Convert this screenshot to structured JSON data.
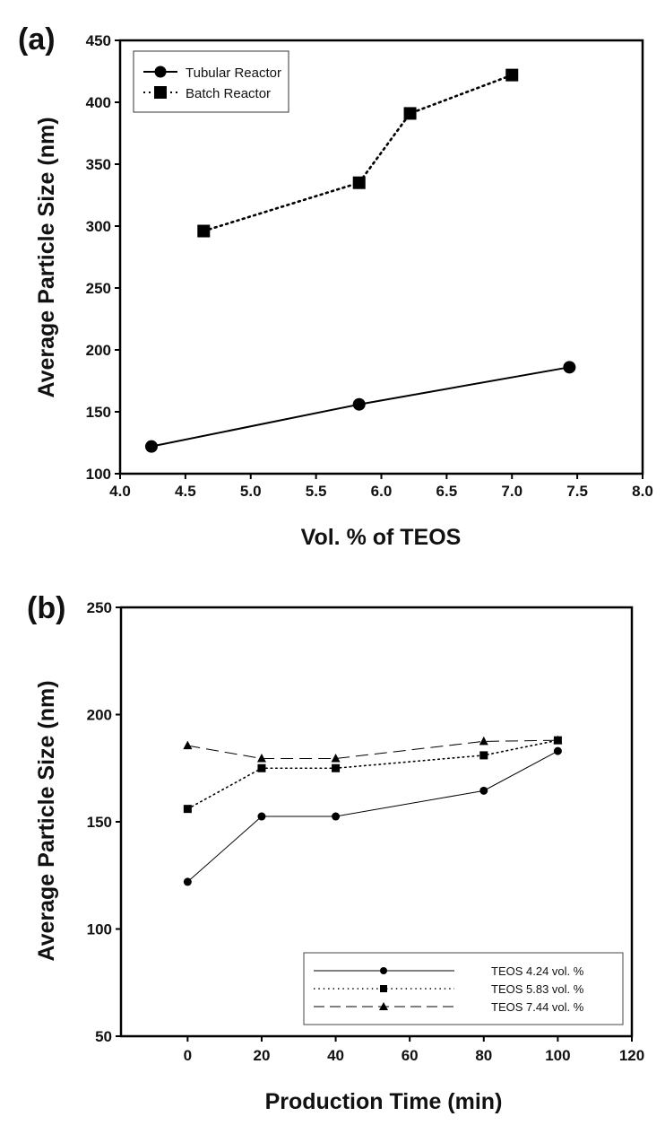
{
  "chart_data": [
    {
      "panel_label": "(a)",
      "type": "line",
      "title": "",
      "xlabel": "Vol. % of TEOS",
      "ylabel": "Average Particle Size (nm)",
      "xlim": [
        4.0,
        8.0
      ],
      "ylim": [
        100,
        450
      ],
      "xticks": [
        "4.0",
        "4.5",
        "5.0",
        "5.5",
        "6.0",
        "6.5",
        "7.0",
        "7.5",
        "8.0"
      ],
      "yticks": [
        "100",
        "150",
        "200",
        "250",
        "300",
        "350",
        "400",
        "450"
      ],
      "grid": false,
      "legend_position": "top-left",
      "series": [
        {
          "name": "Tubular Reactor",
          "marker": "circle",
          "line_style": "solid",
          "x": [
            4.24,
            5.83,
            7.44
          ],
          "y": [
            122,
            156,
            186
          ]
        },
        {
          "name": "Batch Reactor",
          "marker": "square",
          "line_style": "dotted",
          "x": [
            4.64,
            5.83,
            6.22,
            7.0
          ],
          "y": [
            296,
            335,
            391,
            422
          ]
        }
      ]
    },
    {
      "panel_label": "(b)",
      "type": "line",
      "title": "",
      "xlabel": "Production Time (min)",
      "ylabel": "Average Particle Size (nm)",
      "xlim": [
        -18,
        120
      ],
      "ylim": [
        50,
        250
      ],
      "xticks": [
        "0",
        "20",
        "40",
        "60",
        "80",
        "100",
        "120"
      ],
      "yticks": [
        "50",
        "100",
        "150",
        "200",
        "250"
      ],
      "grid": false,
      "legend_position": "bottom-right",
      "series": [
        {
          "name": "TEOS 4.24 vol. %",
          "marker": "circle",
          "line_style": "solid",
          "x": [
            0,
            20,
            40,
            80,
            100
          ],
          "y": [
            122,
            152.5,
            152.5,
            164.5,
            183
          ]
        },
        {
          "name": "TEOS 5.83 vol. %",
          "marker": "square",
          "line_style": "dotted",
          "x": [
            0,
            20,
            40,
            80,
            100
          ],
          "y": [
            156,
            175,
            175,
            181,
            188
          ]
        },
        {
          "name": "TEOS 7.44 vol. %",
          "marker": "triangle",
          "line_style": "dashed",
          "x": [
            0,
            20,
            40,
            80,
            100
          ],
          "y": [
            185.5,
            179.5,
            179.5,
            187.5,
            188
          ]
        }
      ]
    }
  ]
}
